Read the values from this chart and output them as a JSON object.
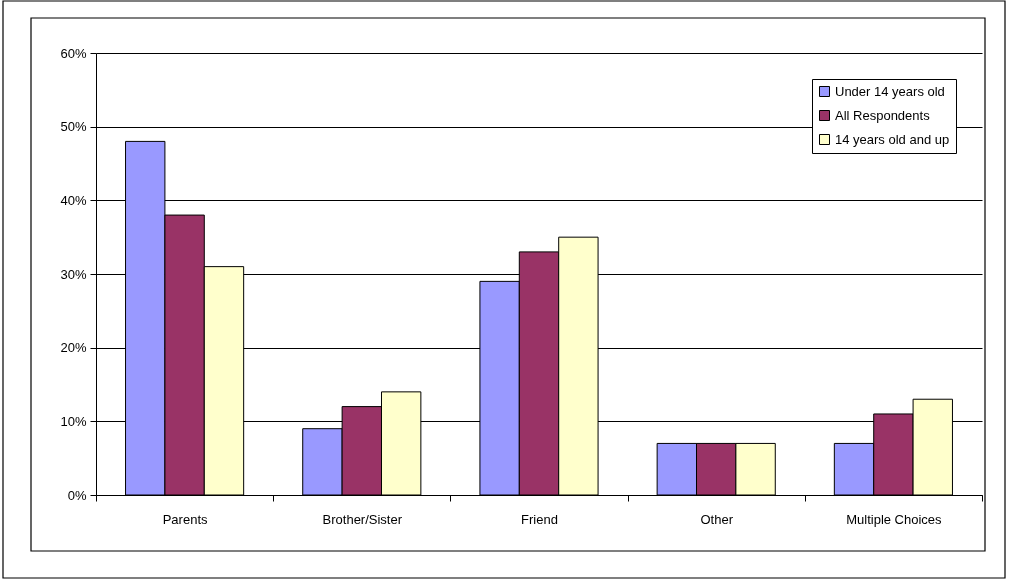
{
  "chart_data": {
    "type": "bar",
    "categories": [
      "Parents",
      "Brother/Sister",
      "Friend",
      "Other",
      "Multiple Choices"
    ],
    "series": [
      {
        "name": "Under 14 years old",
        "color": "#9999ff",
        "values": [
          48,
          9,
          29,
          7,
          7
        ]
      },
      {
        "name": "All Respondents",
        "color": "#993366",
        "values": [
          38,
          12,
          33,
          7,
          11
        ]
      },
      {
        "name": "14 years old and up",
        "color": "#ffffcc",
        "values": [
          31,
          14,
          35,
          7,
          13
        ]
      }
    ],
    "ylim": [
      0,
      60
    ],
    "yticks": [
      {
        "value": 0,
        "label": "0%"
      },
      {
        "value": 10,
        "label": "10%"
      },
      {
        "value": 20,
        "label": "20%"
      },
      {
        "value": 30,
        "label": "30%"
      },
      {
        "value": 40,
        "label": "40%"
      },
      {
        "value": 50,
        "label": "50%"
      },
      {
        "value": 60,
        "label": "60%"
      }
    ],
    "grid": "y",
    "legend": "top right"
  }
}
